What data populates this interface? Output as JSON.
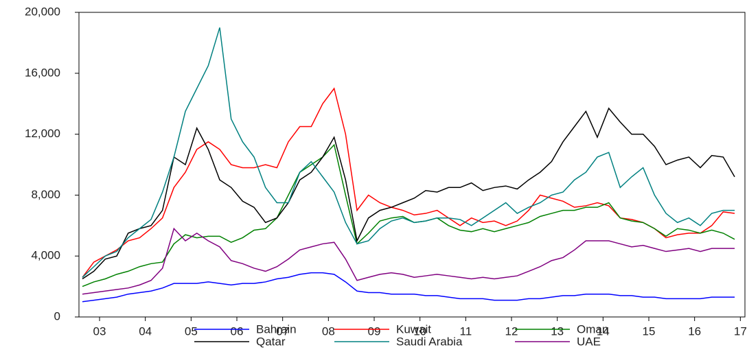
{
  "chart_data": {
    "type": "line",
    "x": [
      3.125,
      3.375,
      3.625,
      3.875,
      4.125,
      4.375,
      4.625,
      4.875,
      5.125,
      5.375,
      5.625,
      5.875,
      6.125,
      6.375,
      6.625,
      6.875,
      7.125,
      7.375,
      7.625,
      7.875,
      8.125,
      8.375,
      8.625,
      8.875,
      9.125,
      9.375,
      9.625,
      9.875,
      10.125,
      10.375,
      10.625,
      10.875,
      11.125,
      11.375,
      11.625,
      11.875,
      12.125,
      12.375,
      12.625,
      12.875,
      13.125,
      13.375,
      13.625,
      13.875,
      14.125,
      14.375,
      14.625,
      14.875,
      15.125,
      15.375,
      15.625,
      15.875,
      16.125,
      16.375,
      16.625,
      16.875,
      17.125,
      17.375
    ],
    "xlim": [
      3.05,
      17.6
    ],
    "xticks": [
      {
        "value": 3.5,
        "label": "03"
      },
      {
        "value": 4.5,
        "label": "04"
      },
      {
        "value": 5.5,
        "label": "05"
      },
      {
        "value": 6.5,
        "label": "06"
      },
      {
        "value": 7.5,
        "label": "07"
      },
      {
        "value": 8.5,
        "label": "08"
      },
      {
        "value": 9.5,
        "label": "09"
      },
      {
        "value": 10.5,
        "label": "10"
      },
      {
        "value": 11.5,
        "label": "11"
      },
      {
        "value": 12.5,
        "label": "12"
      },
      {
        "value": 13.5,
        "label": "13"
      },
      {
        "value": 14.5,
        "label": "14"
      },
      {
        "value": 15.5,
        "label": "15"
      },
      {
        "value": 16.5,
        "label": "16"
      },
      {
        "value": 17.5,
        "label": "17"
      }
    ],
    "ylim": [
      0,
      20000
    ],
    "yticks": [
      0,
      {
        "value": 4000,
        "label": "4,000"
      },
      {
        "value": 8000,
        "label": "8,000"
      },
      {
        "value": 12000,
        "label": "12,000"
      },
      {
        "value": 16000,
        "label": "16,000"
      },
      {
        "value": 20000,
        "label": "20,000"
      }
    ],
    "grid": false,
    "legend": "bottom",
    "series": [
      {
        "name": "Bahrain",
        "color": "#0000ff",
        "values": [
          1000,
          1100,
          1200,
          1300,
          1500,
          1600,
          1700,
          1900,
          2200,
          2200,
          2200,
          2300,
          2200,
          2100,
          2200,
          2200,
          2300,
          2500,
          2600,
          2800,
          2900,
          2900,
          2800,
          2300,
          1700,
          1600,
          1600,
          1500,
          1500,
          1500,
          1400,
          1400,
          1300,
          1200,
          1200,
          1200,
          1100,
          1100,
          1100,
          1200,
          1200,
          1300,
          1400,
          1400,
          1500,
          1500,
          1500,
          1400,
          1400,
          1300,
          1300,
          1200,
          1200,
          1200,
          1200,
          1300,
          1300,
          1300
        ]
      },
      {
        "name": "Kuwait",
        "color": "#ff0000",
        "values": [
          2600,
          3600,
          4000,
          4400,
          5000,
          5200,
          5800,
          6500,
          8500,
          9500,
          11000,
          11500,
          11000,
          10000,
          9800,
          9800,
          10000,
          9800,
          11500,
          12500,
          12500,
          14000,
          15000,
          12000,
          7000,
          8000,
          7500,
          7200,
          7000,
          6700,
          6800,
          7000,
          6500,
          6000,
          6500,
          6200,
          6300,
          6000,
          6300,
          7000,
          8000,
          7800,
          7600,
          7200,
          7300,
          7500,
          7300,
          6500,
          6400,
          6200,
          5800,
          5200,
          5400,
          5500,
          5500,
          6000,
          6900,
          6800
        ]
      },
      {
        "name": "Oman",
        "color": "#008000",
        "values": [
          2000,
          2300,
          2500,
          2800,
          3000,
          3300,
          3500,
          3600,
          4800,
          5400,
          5200,
          5300,
          5300,
          4900,
          5200,
          5700,
          5800,
          6500,
          8000,
          9500,
          10000,
          10500,
          11300,
          8000,
          4800,
          5500,
          6300,
          6500,
          6600,
          6200,
          6300,
          6500,
          6000,
          5700,
          5600,
          5800,
          5600,
          5800,
          6000,
          6200,
          6600,
          6800,
          7000,
          7000,
          7200,
          7200,
          7500,
          6500,
          6300,
          6200,
          5800,
          5300,
          5800,
          5700,
          5500,
          5700,
          5500,
          5100
        ]
      },
      {
        "name": "Qatar",
        "color": "#000000",
        "values": [
          2500,
          3000,
          3800,
          4000,
          5500,
          5800,
          6000,
          7000,
          10500,
          10000,
          12400,
          11000,
          9000,
          8500,
          7600,
          7200,
          6200,
          6500,
          7500,
          9000,
          9500,
          10500,
          11800,
          9000,
          5000,
          6500,
          7000,
          7200,
          7500,
          7800,
          8300,
          8200,
          8500,
          8500,
          8800,
          8300,
          8500,
          8600,
          8400,
          9000,
          9500,
          10200,
          11500,
          12500,
          13500,
          11800,
          13700,
          12800,
          12000,
          12000,
          11200,
          10000,
          10300,
          10500,
          9800,
          10600,
          10500,
          9200
        ]
      },
      {
        "name": "Saudi Arabia",
        "color": "#008080",
        "values": [
          2600,
          3300,
          4000,
          4300,
          5200,
          5800,
          6400,
          8200,
          10500,
          13500,
          15000,
          16500,
          19000,
          13000,
          11500,
          10500,
          8500,
          7500,
          7500,
          9500,
          10200,
          9200,
          8200,
          6200,
          4800,
          5000,
          5800,
          6300,
          6500,
          6200,
          6300,
          6500,
          6500,
          6400,
          6000,
          6500,
          7000,
          7500,
          6800,
          7200,
          7500,
          8000,
          8200,
          9000,
          9500,
          10500,
          10800,
          8500,
          9200,
          9800,
          8000,
          6800,
          6200,
          6500,
          6000,
          6800,
          7000,
          7000
        ]
      },
      {
        "name": "UAE",
        "color": "#800080",
        "values": [
          1500,
          1600,
          1700,
          1800,
          1900,
          2100,
          2400,
          3200,
          5800,
          5000,
          5500,
          5000,
          4600,
          3700,
          3500,
          3200,
          3000,
          3300,
          3800,
          4400,
          4600,
          4800,
          4900,
          3800,
          2400,
          2600,
          2800,
          2900,
          2800,
          2600,
          2700,
          2800,
          2700,
          2600,
          2500,
          2600,
          2500,
          2600,
          2700,
          3000,
          3300,
          3700,
          3900,
          4400,
          5000,
          5000,
          5000,
          4800,
          4600,
          4700,
          4500,
          4300,
          4400,
          4500,
          4300,
          4500,
          4500,
          4500
        ]
      }
    ]
  }
}
